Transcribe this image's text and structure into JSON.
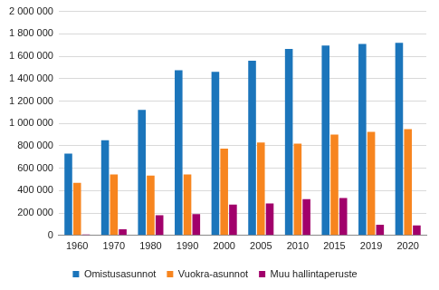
{
  "chart_data": {
    "type": "bar",
    "categories": [
      "1960",
      "1970",
      "1980",
      "1990",
      "2000",
      "2005",
      "2010",
      "2015",
      "2019",
      "2020"
    ],
    "series": [
      {
        "name": "Omistusasunnot",
        "color": "#1b75bb",
        "values": [
          730000,
          850000,
          1120000,
          1475000,
          1460000,
          1560000,
          1665000,
          1695000,
          1710000,
          1720000
        ]
      },
      {
        "name": "Vuokra-asunnot",
        "color": "#f7851f",
        "values": [
          470000,
          545000,
          535000,
          545000,
          775000,
          830000,
          820000,
          900000,
          925000,
          950000
        ]
      },
      {
        "name": "Muu hallintaperuste",
        "color": "#a1006b",
        "values": [
          8000,
          55000,
          180000,
          190000,
          275000,
          285000,
          325000,
          335000,
          95000,
          90000
        ]
      }
    ],
    "ylim": [
      0,
      2000000
    ],
    "yticks": [
      {
        "value": 0,
        "label": "0"
      },
      {
        "value": 200000,
        "label": "200 000"
      },
      {
        "value": 400000,
        "label": "400 000"
      },
      {
        "value": 600000,
        "label": "600 000"
      },
      {
        "value": 800000,
        "label": "800 000"
      },
      {
        "value": 1000000,
        "label": "1 000 000"
      },
      {
        "value": 1200000,
        "label": "1 200 000"
      },
      {
        "value": 1400000,
        "label": "1 400 000"
      },
      {
        "value": 1600000,
        "label": "1 600 000"
      },
      {
        "value": 1800000,
        "label": "1 800 000"
      },
      {
        "value": 2000000,
        "label": "2 000 000"
      }
    ],
    "grid": true,
    "legend": "bottom"
  }
}
